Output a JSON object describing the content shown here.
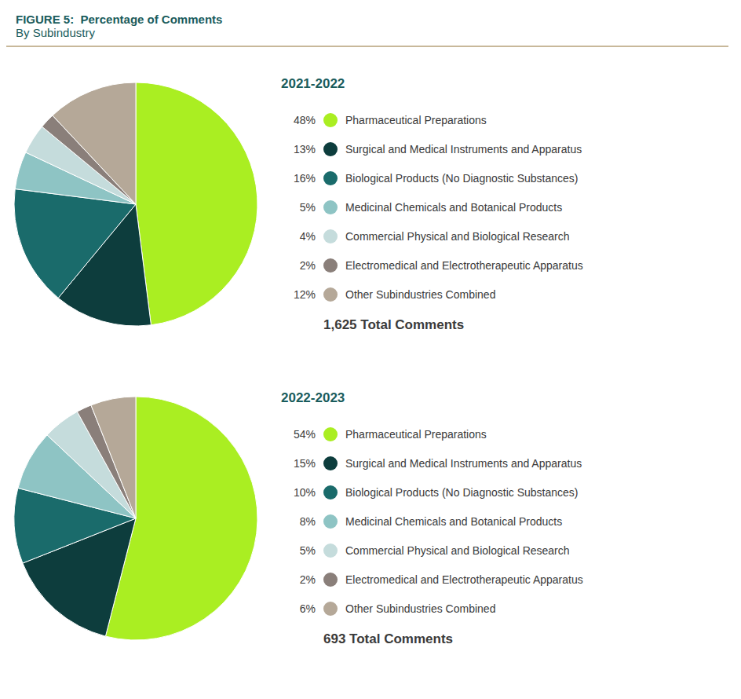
{
  "title": "FIGURE 5:  Percentage of Comments",
  "subtitle": "By Subindustry",
  "chart_data": [
    {
      "type": "pie",
      "title": "2021-2022",
      "categories": [
        "Pharmaceutical Preparations",
        "Surgical and Medical Instruments and Apparatus",
        "Biological Products (No Diagnostic Substances)",
        "Medicinal Chemicals and Botanical Products",
        "Commercial Physical and Biological Research",
        "Electromedical and Electrotherapeutic Apparatus",
        "Other Subindustries Combined"
      ],
      "values": [
        48,
        13,
        16,
        5,
        4,
        2,
        12
      ],
      "value_labels": [
        "48%",
        "13%",
        "16%",
        "5%",
        "4%",
        "2%",
        "12%"
      ],
      "colors": [
        "#AAEE22",
        "#0D3D3D",
        "#1A6B6B",
        "#8EC4C4",
        "#C5DCDC",
        "#8A7F7A",
        "#B5A898"
      ],
      "legend": "right",
      "annotations": [
        "1,625 Total Comments"
      ]
    },
    {
      "type": "pie",
      "title": "2022-2023",
      "categories": [
        "Pharmaceutical Preparations",
        "Surgical and Medical Instruments and Apparatus",
        "Biological Products (No Diagnostic Substances)",
        "Medicinal Chemicals and Botanical Products",
        "Commercial Physical and Biological Research",
        "Electromedical and Electrotherapeutic Apparatus",
        "Other Subindustries Combined"
      ],
      "values": [
        54,
        15,
        10,
        8,
        5,
        2,
        6
      ],
      "value_labels": [
        "54%",
        "15%",
        "10%",
        "8%",
        "5%",
        "2%",
        "6%"
      ],
      "colors": [
        "#AAEE22",
        "#0D3D3D",
        "#1A6B6B",
        "#8EC4C4",
        "#C5DCDC",
        "#8A7F7A",
        "#B5A898"
      ],
      "legend": "right",
      "annotations": [
        "693 Total Comments"
      ]
    }
  ]
}
